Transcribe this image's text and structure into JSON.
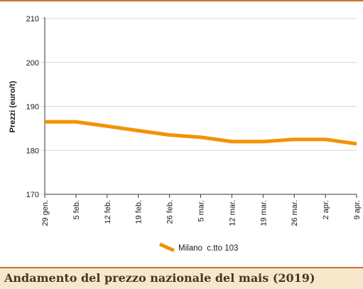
{
  "caption": "Andamento del prezzo nazionale del mais (2019)",
  "colors": {
    "series": "#f39200",
    "accent": "#c8742b",
    "caption_bg": "#f7e8cc"
  },
  "chart_data": {
    "type": "line",
    "title": "",
    "xlabel": "",
    "ylabel": "Prezzi (euro/t)",
    "ylim": [
      170,
      210
    ],
    "yticks": [
      170,
      180,
      190,
      200,
      210
    ],
    "grid": "horizontal",
    "legend_position": "bottom-center",
    "categories": [
      "29 gen.",
      "5 feb.",
      "12 feb.",
      "19 feb.",
      "26 feb.",
      "5 mar.",
      "12 mar.",
      "19 mar.",
      "26 mar.",
      "2 apr.",
      "9 apr."
    ],
    "series": [
      {
        "name": "Milano  c.tto 103",
        "values": [
          186.5,
          186.5,
          185.5,
          184.5,
          183.5,
          183.0,
          182.0,
          182.0,
          182.5,
          182.5,
          181.5
        ]
      }
    ]
  }
}
